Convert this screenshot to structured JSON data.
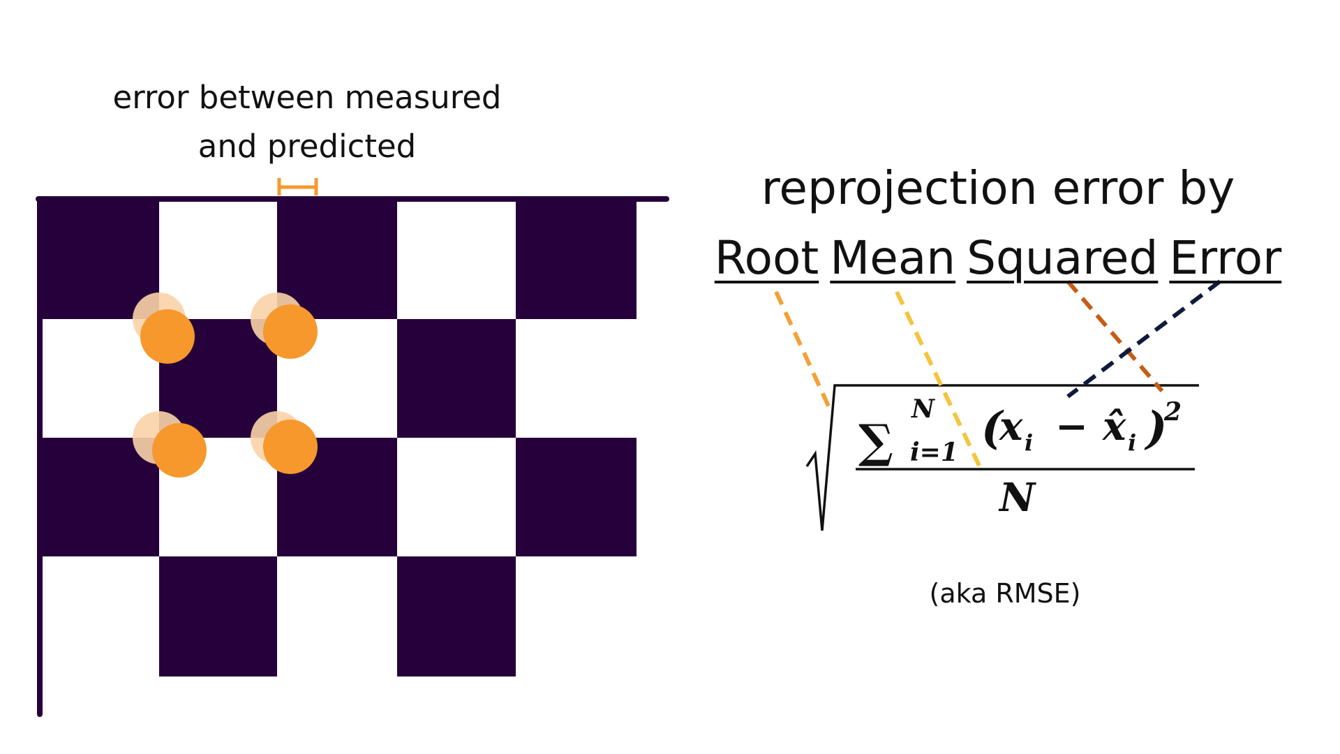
{
  "error_caption": {
    "line1": "error between measured",
    "line2": "and predicted"
  },
  "title": {
    "line1": "reprojection error by",
    "words": [
      "Root",
      "Mean",
      "Squared",
      "Error"
    ]
  },
  "formula": {
    "sum_symbol": "∑",
    "upper_limit": "N",
    "lower_limit": "i=1",
    "open_paren": "(",
    "term_x": "x",
    "term_sub": "i",
    "minus": "−",
    "term_xhat": "x̂",
    "term_hat_sub": "i",
    "close_paren": ")",
    "exponent": "2",
    "denominator": "N"
  },
  "aka": "(aka RMSE)",
  "colors": {
    "checker_dark": "#25003a",
    "point_predicted": "#f7982d",
    "point_measured": "#fbd3a8",
    "root_link": "#f5a035",
    "mean_link": "#f6c33c",
    "squared_link": "#c55d15",
    "error_link": "#0f1a3c",
    "marker": "#f7982d"
  }
}
